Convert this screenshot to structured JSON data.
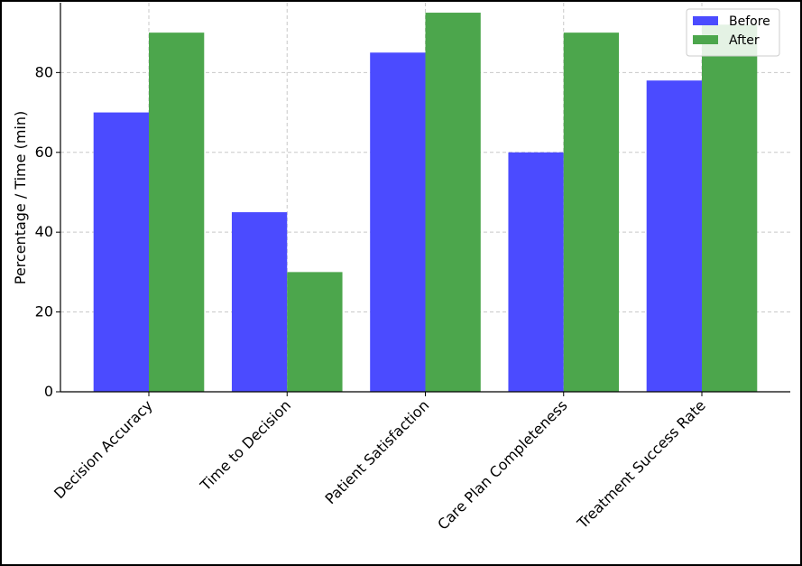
{
  "chart_data": {
    "type": "bar",
    "categories": [
      "Decision Accuracy",
      "Time to Decision",
      "Patient Satisfaction",
      "Care Plan Completeness",
      "Treatment Success Rate"
    ],
    "series": [
      {
        "name": "Before",
        "values": [
          70,
          45,
          85,
          60,
          78
        ],
        "color": "#4b4bff"
      },
      {
        "name": "After",
        "values": [
          90,
          30,
          95,
          90,
          92
        ],
        "color": "#4ca64c"
      }
    ],
    "title": "",
    "xlabel": "",
    "ylabel": "Percentage / Time (min)",
    "ylim": [
      0,
      97.5
    ],
    "yticks": [
      0,
      20,
      40,
      60,
      80
    ],
    "grid": true,
    "legend_position": "top-right"
  }
}
